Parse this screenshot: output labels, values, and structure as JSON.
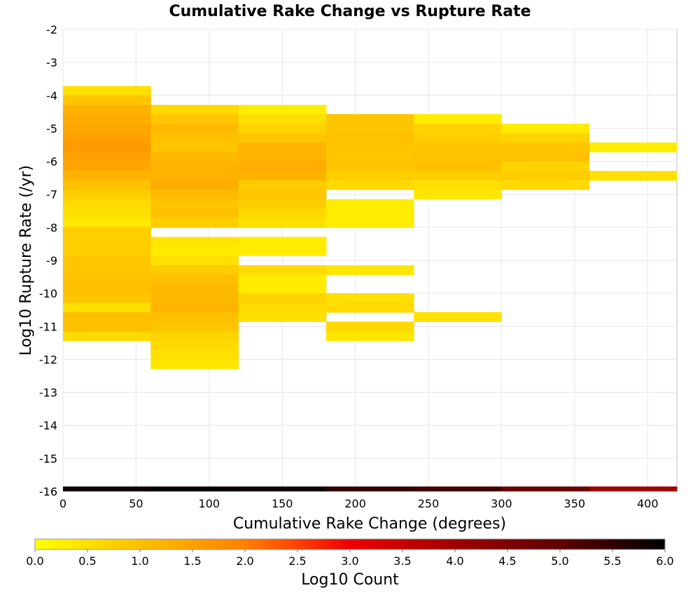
{
  "chart_data": {
    "type": "heatmap",
    "title": "Cumulative Rake Change vs Rupture Rate",
    "xlabel": "Cumulative Rake Change (degrees)",
    "ylabel": "Log10 Rupture Rate (/yr)",
    "xlim": [
      0,
      420
    ],
    "ylim": [
      -16,
      -2
    ],
    "x_ticks": [
      "0",
      "50",
      "100",
      "150",
      "200",
      "250",
      "300",
      "350",
      "400"
    ],
    "y_ticks": [
      "-16",
      "-15",
      "-14",
      "-13",
      "-12",
      "-11",
      "-10",
      "-9",
      "-8",
      "-7",
      "-6",
      "-5",
      "-4",
      "-3",
      "-2"
    ],
    "x_bin_width": 60,
    "y_bin_width": 0.286,
    "grid": true,
    "colorbar": {
      "label": "Log10 Count",
      "min": 0,
      "max": 6,
      "ticks": [
        "0.0",
        "0.5",
        "1.0",
        "1.5",
        "2.0",
        "2.5",
        "3.0",
        "3.5",
        "4.0",
        "4.5",
        "5.0",
        "5.5",
        "6.0"
      ],
      "colors": [
        "#ffff00",
        "#ffc000",
        "#ff8000",
        "#ff4000",
        "#ee0000",
        "#a00000",
        "#600000",
        "#000000"
      ]
    },
    "total_row": {
      "y": -16,
      "values": [
        5.8,
        5.9,
        5.8,
        5.5,
        5.3,
        4.8,
        4.0
      ]
    },
    "columns": [
      {
        "x": 0,
        "cells": [
          {
            "y": -3.86,
            "v": 0.5
          },
          {
            "y": -4.14,
            "v": 0.9
          },
          {
            "y": -4.43,
            "v": 1.2
          },
          {
            "y": -4.71,
            "v": 1.3
          },
          {
            "y": -5.0,
            "v": 1.4
          },
          {
            "y": -5.29,
            "v": 1.5
          },
          {
            "y": -5.57,
            "v": 1.6
          },
          {
            "y": -5.86,
            "v": 1.5
          },
          {
            "y": -6.14,
            "v": 1.4
          },
          {
            "y": -6.43,
            "v": 1.2
          },
          {
            "y": -6.71,
            "v": 1.0
          },
          {
            "y": -7.0,
            "v": 0.8
          },
          {
            "y": -7.29,
            "v": 0.6
          },
          {
            "y": -7.57,
            "v": 0.5
          },
          {
            "y": -7.86,
            "v": 0.4
          },
          {
            "y": -8.14,
            "v": 0.8
          },
          {
            "y": -8.43,
            "v": 0.8
          },
          {
            "y": -8.71,
            "v": 0.8
          },
          {
            "y": -9.0,
            "v": 0.9
          },
          {
            "y": -9.29,
            "v": 0.9
          },
          {
            "y": -9.57,
            "v": 1.0
          },
          {
            "y": -9.86,
            "v": 1.0
          },
          {
            "y": -10.14,
            "v": 0.9
          },
          {
            "y": -10.43,
            "v": 0.5
          },
          {
            "y": -10.71,
            "v": 1.0
          },
          {
            "y": -11.0,
            "v": 1.0
          },
          {
            "y": -11.29,
            "v": 0.6
          }
        ]
      },
      {
        "x": 60,
        "cells": [
          {
            "y": -4.43,
            "v": 0.6
          },
          {
            "y": -4.71,
            "v": 0.9
          },
          {
            "y": -5.0,
            "v": 1.1
          },
          {
            "y": -5.29,
            "v": 1.0
          },
          {
            "y": -5.57,
            "v": 0.9
          },
          {
            "y": -5.86,
            "v": 1.1
          },
          {
            "y": -6.14,
            "v": 1.2
          },
          {
            "y": -6.43,
            "v": 1.2
          },
          {
            "y": -6.71,
            "v": 1.3
          },
          {
            "y": -7.0,
            "v": 1.1
          },
          {
            "y": -7.29,
            "v": 0.9
          },
          {
            "y": -7.57,
            "v": 1.0
          },
          {
            "y": -7.86,
            "v": 0.8
          },
          {
            "y": -8.43,
            "v": 0.4
          },
          {
            "y": -8.71,
            "v": 0.3
          },
          {
            "y": -9.0,
            "v": 0.5
          },
          {
            "y": -9.29,
            "v": 0.8
          },
          {
            "y": -9.57,
            "v": 1.0
          },
          {
            "y": -9.86,
            "v": 1.1
          },
          {
            "y": -10.14,
            "v": 1.1
          },
          {
            "y": -10.43,
            "v": 1.2
          },
          {
            "y": -10.71,
            "v": 1.0
          },
          {
            "y": -11.0,
            "v": 0.9
          },
          {
            "y": -11.29,
            "v": 0.7
          },
          {
            "y": -11.57,
            "v": 0.6
          },
          {
            "y": -11.86,
            "v": 0.5
          },
          {
            "y": -12.14,
            "v": 0.4
          }
        ]
      },
      {
        "x": 120,
        "cells": [
          {
            "y": -4.43,
            "v": 0.3
          },
          {
            "y": -4.71,
            "v": 0.5
          },
          {
            "y": -5.0,
            "v": 0.7
          },
          {
            "y": -5.29,
            "v": 0.9
          },
          {
            "y": -5.57,
            "v": 1.2
          },
          {
            "y": -5.86,
            "v": 1.2
          },
          {
            "y": -6.14,
            "v": 1.3
          },
          {
            "y": -6.43,
            "v": 1.2
          },
          {
            "y": -6.71,
            "v": 0.8
          },
          {
            "y": -7.0,
            "v": 0.9
          },
          {
            "y": -7.29,
            "v": 0.8
          },
          {
            "y": -7.57,
            "v": 0.6
          },
          {
            "y": -7.86,
            "v": 0.5
          },
          {
            "y": -8.43,
            "v": 0.3
          },
          {
            "y": -8.71,
            "v": 0.3
          },
          {
            "y": -9.29,
            "v": 0.6
          },
          {
            "y": -9.57,
            "v": 0.3
          },
          {
            "y": -9.86,
            "v": 0.3
          },
          {
            "y": -10.14,
            "v": 0.7
          },
          {
            "y": -10.43,
            "v": 0.6
          },
          {
            "y": -10.71,
            "v": 0.5
          }
        ]
      },
      {
        "x": 180,
        "cells": [
          {
            "y": -4.71,
            "v": 0.9
          },
          {
            "y": -5.0,
            "v": 0.9
          },
          {
            "y": -5.29,
            "v": 1.0
          },
          {
            "y": -5.57,
            "v": 0.9
          },
          {
            "y": -5.86,
            "v": 0.9
          },
          {
            "y": -6.14,
            "v": 0.9
          },
          {
            "y": -6.43,
            "v": 0.8
          },
          {
            "y": -6.71,
            "v": 0.6
          },
          {
            "y": -7.29,
            "v": 0.3
          },
          {
            "y": -7.57,
            "v": 0.3
          },
          {
            "y": -7.86,
            "v": 0.3
          },
          {
            "y": -9.29,
            "v": 0.4
          },
          {
            "y": -10.14,
            "v": 0.5
          },
          {
            "y": -10.43,
            "v": 0.6
          },
          {
            "y": -11.0,
            "v": 0.6
          },
          {
            "y": -11.29,
            "v": 0.4
          }
        ]
      },
      {
        "x": 240,
        "cells": [
          {
            "y": -4.71,
            "v": 0.3
          },
          {
            "y": -5.0,
            "v": 0.7
          },
          {
            "y": -5.29,
            "v": 0.8
          },
          {
            "y": -5.57,
            "v": 0.9
          },
          {
            "y": -5.86,
            "v": 1.0
          },
          {
            "y": -6.14,
            "v": 1.0
          },
          {
            "y": -6.43,
            "v": 0.8
          },
          {
            "y": -6.71,
            "v": 0.5
          },
          {
            "y": -7.0,
            "v": 0.4
          },
          {
            "y": -10.71,
            "v": 0.5
          }
        ]
      },
      {
        "x": 300,
        "cells": [
          {
            "y": -5.0,
            "v": 0.3
          },
          {
            "y": -5.29,
            "v": 0.7
          },
          {
            "y": -5.57,
            "v": 0.9
          },
          {
            "y": -5.86,
            "v": 1.0
          },
          {
            "y": -6.14,
            "v": 0.7
          },
          {
            "y": -6.43,
            "v": 0.8
          },
          {
            "y": -6.71,
            "v": 0.6
          }
        ]
      },
      {
        "x": 360,
        "cells": [
          {
            "y": -5.57,
            "v": 0.3
          },
          {
            "y": -6.43,
            "v": 0.5
          }
        ]
      }
    ]
  }
}
